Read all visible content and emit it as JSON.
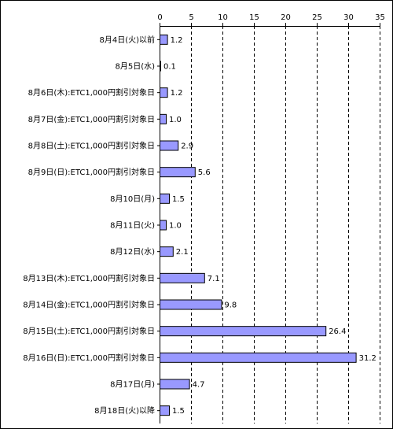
{
  "chart_data": {
    "type": "bar",
    "orientation": "horizontal",
    "categories": [
      "8月4日(火)以前",
      "8月5日(水)",
      "8月6日(木):ETC1,000円割引対象日",
      "8月7日(金):ETC1,000円割引対象日",
      "8月8日(土):ETC1,000円割引対象日",
      "8月9日(日):ETC1,000円割引対象日",
      "8月10日(月)",
      "8月11日(火)",
      "8月12日(水)",
      "8月13日(木):ETC1,000円割引対象日",
      "8月14日(金):ETC1,000円割引対象日",
      "8月15日(土):ETC1,000円割引対象日",
      "8月16日(日):ETC1,000円割引対象日",
      "8月17日(月)",
      "8月18日(火)以降"
    ],
    "values": [
      1.2,
      0.1,
      1.2,
      1.0,
      2.9,
      5.6,
      1.5,
      1.0,
      2.1,
      7.1,
      9.8,
      26.4,
      31.2,
      4.7,
      1.5
    ],
    "data_labels": [
      "1.2",
      "0.1",
      "1.2",
      "1.0",
      "2.9",
      "5.6",
      "1.5",
      "1.0",
      "2.1",
      "7.1",
      "9.8",
      "26.4",
      "31.2",
      "4.7",
      "1.5"
    ],
    "xlim": [
      0,
      35
    ],
    "xticks": [
      0,
      5,
      10,
      15,
      20,
      25,
      30,
      35
    ],
    "xtick_labels": [
      "0",
      "5",
      "10",
      "15",
      "20",
      "25",
      "30",
      "35"
    ],
    "axis_position": "top",
    "grid": "vertical dashed",
    "bar_color": "#9999ff",
    "bar_edge_color": "#000000"
  }
}
